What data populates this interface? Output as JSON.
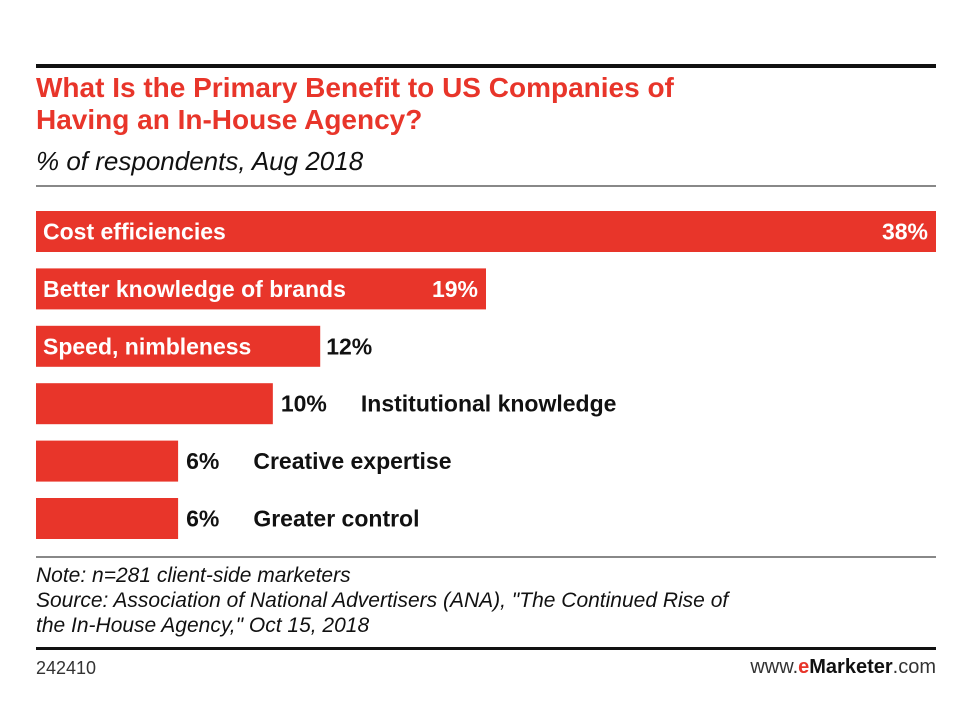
{
  "header": {
    "title_line1": "What Is the Primary Benefit to US Companies of",
    "title_line2": "Having an In-House Agency?",
    "subtitle": "% of respondents, Aug 2018"
  },
  "chart_data": {
    "type": "bar",
    "orientation": "horizontal",
    "categories": [
      "Cost efficiencies",
      "Better knowledge of brands",
      "Speed, nimbleness",
      "Institutional knowledge",
      "Creative expertise",
      "Greater control"
    ],
    "values": [
      38,
      19,
      12,
      10,
      6,
      6
    ],
    "value_labels": [
      "38%",
      "19%",
      "12%",
      "10%",
      "6%",
      "6%"
    ],
    "unit": "%",
    "xlim": [
      0,
      38
    ],
    "bar_color": "#e8352a",
    "grid": false,
    "legend": "none"
  },
  "footer": {
    "note_line1": "Note: n=281 client-side marketers",
    "note_line2": "Source: Association of National Advertisers (ANA), \"The Continued Rise of",
    "note_line3": "the In-House Agency,\" Oct 15, 2018",
    "chart_id": "242410",
    "site_prefix": "www.",
    "site_e": "e",
    "site_brand": "Marketer",
    "site_suffix": ".com"
  },
  "colors": {
    "accent": "#e8352a",
    "text": "#111111",
    "inside_label": "#ffffff"
  }
}
